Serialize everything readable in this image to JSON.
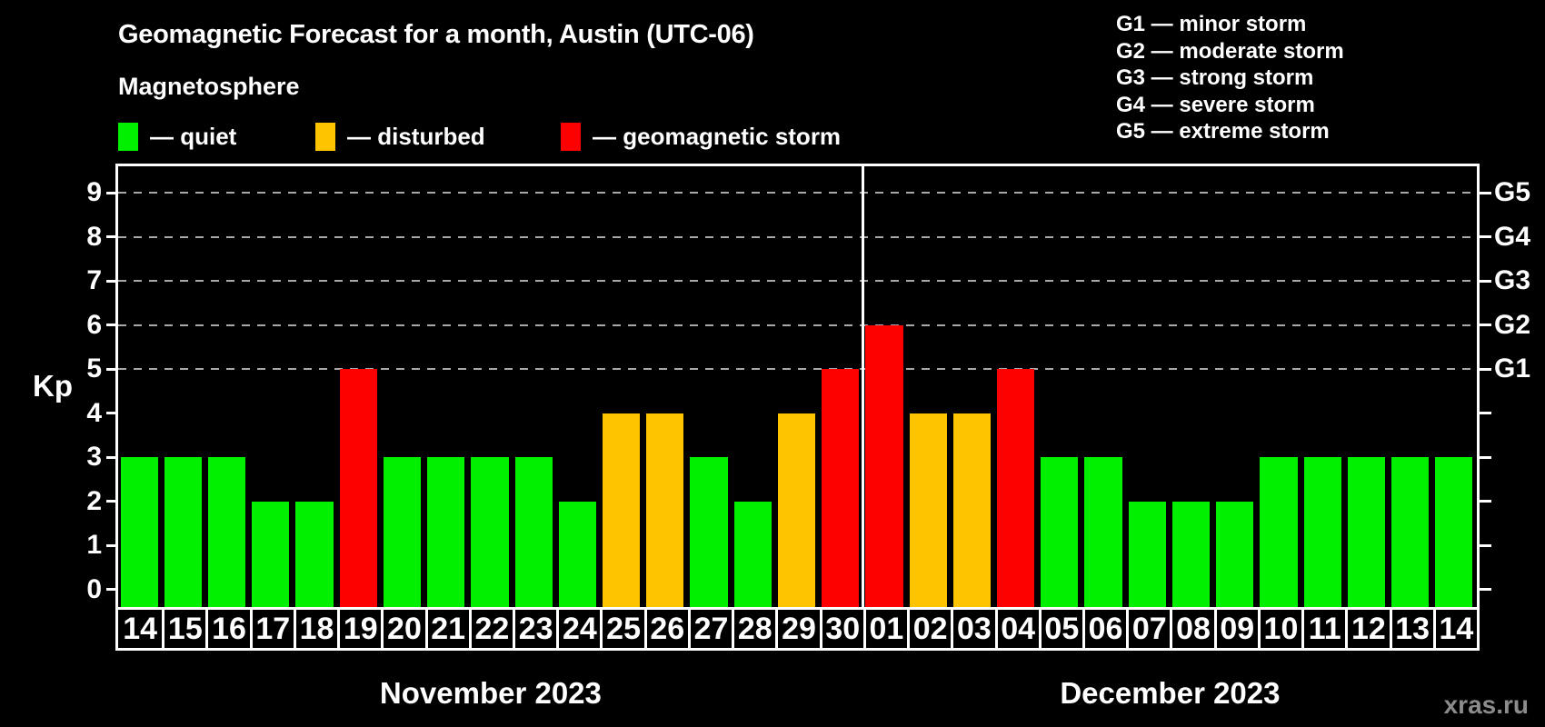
{
  "title": "Geomagnetic Forecast for a month, Austin (UTC-06)",
  "subtitle": "Magnetosphere",
  "magnetosphere_legend": [
    {
      "label": "— quiet",
      "status": "quiet",
      "color": "#00f000"
    },
    {
      "label": "— disturbed",
      "status": "disturbed",
      "color": "#ffc400"
    },
    {
      "label": "— geomagnetic storm",
      "status": "storm",
      "color": "#fd0000"
    }
  ],
  "storm_scale_legend": [
    "G1 — minor storm",
    "G2 — moderate storm",
    "G3 — strong storm",
    "G4 — severe storm",
    "G5 — extreme storm"
  ],
  "watermark": "xras.ru",
  "chart_data": {
    "type": "bar",
    "title": "Geomagnetic Forecast for a month, Austin (UTC-06)",
    "ylabel": "Kp",
    "ylim": [
      -0.4,
      9.6
    ],
    "yticks": [
      0,
      1,
      2,
      3,
      4,
      5,
      6,
      7,
      8,
      9
    ],
    "grid_levels": [
      5,
      6,
      7,
      8,
      9
    ],
    "grid_on": true,
    "right_axis_labels": [
      {
        "text": "G1",
        "level": 5
      },
      {
        "text": "G2",
        "level": 6
      },
      {
        "text": "G3",
        "level": 7
      },
      {
        "text": "G4",
        "level": 8
      },
      {
        "text": "G5",
        "level": 9
      }
    ],
    "status_colors": {
      "quiet": "#00f000",
      "disturbed": "#ffc400",
      "storm": "#fd0000"
    },
    "months": [
      {
        "label": "November 2023",
        "days": 17
      },
      {
        "label": "December 2023",
        "days": 14
      }
    ],
    "categories": [
      "14",
      "15",
      "16",
      "17",
      "18",
      "19",
      "20",
      "21",
      "22",
      "23",
      "24",
      "25",
      "26",
      "27",
      "28",
      "29",
      "30",
      "01",
      "02",
      "03",
      "04",
      "05",
      "06",
      "07",
      "08",
      "09",
      "10",
      "11",
      "12",
      "13",
      "14"
    ],
    "values": [
      3,
      3,
      3,
      2,
      2,
      5,
      3,
      3,
      3,
      3,
      2,
      4,
      4,
      3,
      2,
      4,
      5,
      6,
      4,
      4,
      5,
      3,
      3,
      2,
      2,
      2,
      3,
      3,
      3,
      3,
      3
    ],
    "statuses": [
      "quiet",
      "quiet",
      "quiet",
      "quiet",
      "quiet",
      "storm",
      "quiet",
      "quiet",
      "quiet",
      "quiet",
      "quiet",
      "disturbed",
      "disturbed",
      "quiet",
      "quiet",
      "disturbed",
      "storm",
      "storm",
      "disturbed",
      "disturbed",
      "storm",
      "quiet",
      "quiet",
      "quiet",
      "quiet",
      "quiet",
      "quiet",
      "quiet",
      "quiet",
      "quiet",
      "quiet"
    ]
  }
}
